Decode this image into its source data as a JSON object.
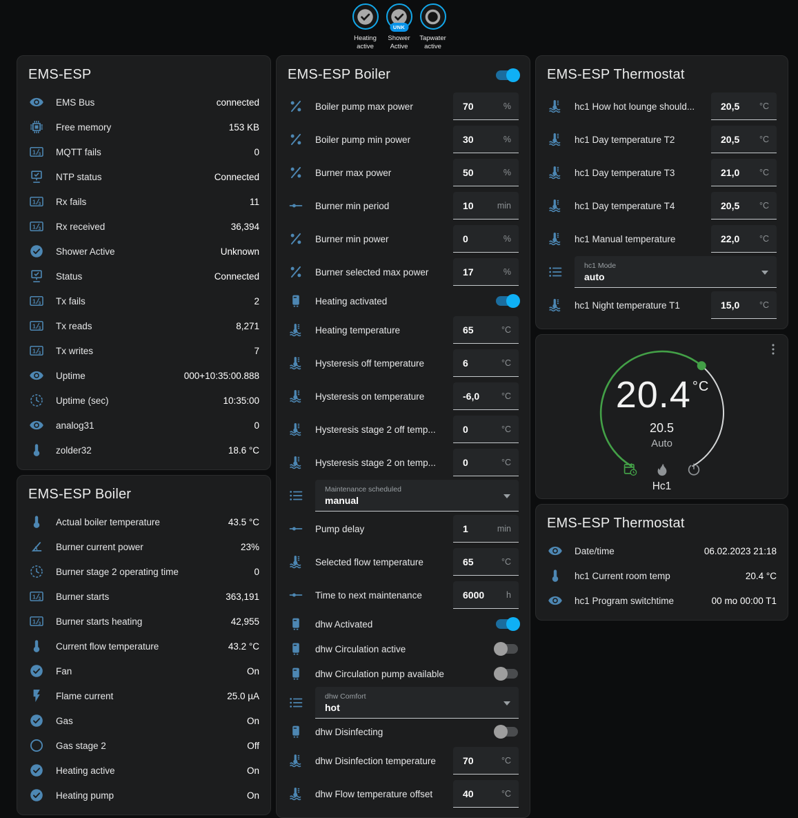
{
  "colors": {
    "icon_blue": "#4d87b3",
    "toggle_on": "#0fb0f5",
    "badge_ring": "#12a7ea",
    "dial_green": "#43a047",
    "card_bg": "#1c1d1e"
  },
  "badges": [
    {
      "label": "Heating active",
      "state": "on",
      "pill": ""
    },
    {
      "label": "Shower Active",
      "state": "on",
      "pill": "UNK"
    },
    {
      "label": "Tapwater active",
      "state": "off",
      "pill": ""
    }
  ],
  "cards": {
    "ems_esp": {
      "title": "EMS-ESP",
      "rows": [
        {
          "type": "text",
          "icon": "eye",
          "label": "EMS Bus",
          "value": "connected"
        },
        {
          "type": "text",
          "icon": "memory",
          "label": "Free memory",
          "value": "153 KB"
        },
        {
          "type": "text",
          "icon": "counter",
          "label": "MQTT fails",
          "value": "0"
        },
        {
          "type": "text",
          "icon": "lan",
          "label": "NTP status",
          "value": "Connected"
        },
        {
          "type": "text",
          "icon": "counter",
          "label": "Rx fails",
          "value": "11"
        },
        {
          "type": "text",
          "icon": "counter",
          "label": "Rx received",
          "value": "36,394"
        },
        {
          "type": "text",
          "icon": "check-circle",
          "label": "Shower Active",
          "value": "Unknown"
        },
        {
          "type": "text",
          "icon": "lan",
          "label": "Status",
          "value": "Connected"
        },
        {
          "type": "text",
          "icon": "counter",
          "label": "Tx fails",
          "value": "2"
        },
        {
          "type": "text",
          "icon": "counter",
          "label": "Tx reads",
          "value": "8,271"
        },
        {
          "type": "text",
          "icon": "counter",
          "label": "Tx writes",
          "value": "7"
        },
        {
          "type": "text",
          "icon": "eye",
          "label": "Uptime",
          "value": "000+10:35:00.888"
        },
        {
          "type": "text",
          "icon": "clock",
          "label": "Uptime (sec)",
          "value": "10:35:00"
        },
        {
          "type": "text",
          "icon": "eye",
          "label": "analog31",
          "value": "0"
        },
        {
          "type": "text",
          "icon": "thermometer",
          "label": "zolder32",
          "value": "18.6 °C"
        }
      ]
    },
    "boiler_sensors": {
      "title": "EMS-ESP Boiler",
      "rows": [
        {
          "type": "text",
          "icon": "thermometer",
          "label": "Actual boiler temperature",
          "value": "43.5 °C"
        },
        {
          "type": "text",
          "icon": "angle",
          "label": "Burner current power",
          "value": "23%"
        },
        {
          "type": "text",
          "icon": "clock",
          "label": "Burner stage 2 operating time",
          "value": "0"
        },
        {
          "type": "text",
          "icon": "counter",
          "label": "Burner starts",
          "value": "363,191"
        },
        {
          "type": "text",
          "icon": "counter",
          "label": "Burner starts heating",
          "value": "42,955"
        },
        {
          "type": "text",
          "icon": "thermometer",
          "label": "Current flow temperature",
          "value": "43.2 °C"
        },
        {
          "type": "text",
          "icon": "check-circle",
          "label": "Fan",
          "value": "On"
        },
        {
          "type": "text",
          "icon": "flash",
          "label": "Flame current",
          "value": "25.0 µA"
        },
        {
          "type": "text",
          "icon": "check-circle",
          "label": "Gas",
          "value": "On"
        },
        {
          "type": "text",
          "icon": "circle-o",
          "label": "Gas stage 2",
          "value": "Off"
        },
        {
          "type": "text",
          "icon": "check-circle",
          "label": "Heating active",
          "value": "On"
        },
        {
          "type": "text",
          "icon": "check-circle",
          "label": "Heating pump",
          "value": "On"
        }
      ]
    },
    "boiler_controls": {
      "title": "EMS-ESP Boiler",
      "power_toggle": "on",
      "rows": [
        {
          "type": "number",
          "icon": "percent",
          "label": "Boiler pump max power",
          "value": "70",
          "unit": "%"
        },
        {
          "type": "number",
          "icon": "percent",
          "label": "Boiler pump min power",
          "value": "30",
          "unit": "%"
        },
        {
          "type": "number",
          "icon": "percent",
          "label": "Burner max power",
          "value": "50",
          "unit": "%"
        },
        {
          "type": "number",
          "icon": "slider",
          "label": "Burner min period",
          "value": "10",
          "unit": "min"
        },
        {
          "type": "number",
          "icon": "percent",
          "label": "Burner min power",
          "value": "0",
          "unit": "%"
        },
        {
          "type": "number",
          "icon": "percent",
          "label": "Burner selected max power",
          "value": "17",
          "unit": "%"
        },
        {
          "type": "toggle",
          "icon": "heater",
          "label": "Heating activated",
          "state": "on"
        },
        {
          "type": "number",
          "icon": "coolant",
          "label": "Heating temperature",
          "value": "65",
          "unit": "°C"
        },
        {
          "type": "number",
          "icon": "coolant",
          "label": "Hysteresis off temperature",
          "value": "6",
          "unit": "°C"
        },
        {
          "type": "number",
          "icon": "coolant",
          "label": "Hysteresis on temperature",
          "value": "-6,0",
          "unit": "°C"
        },
        {
          "type": "number",
          "icon": "coolant",
          "label": "Hysteresis stage 2 off temp...",
          "value": "0",
          "unit": "°C"
        },
        {
          "type": "number",
          "icon": "coolant",
          "label": "Hysteresis stage 2 on temp...",
          "value": "0",
          "unit": "°C"
        },
        {
          "type": "select",
          "icon": "list",
          "label": "Maintenance scheduled",
          "value": "manual"
        },
        {
          "type": "number",
          "icon": "slider",
          "label": "Pump delay",
          "value": "1",
          "unit": "min"
        },
        {
          "type": "number",
          "icon": "coolant",
          "label": "Selected flow temperature",
          "value": "65",
          "unit": "°C"
        },
        {
          "type": "number",
          "icon": "slider",
          "label": "Time to next maintenance",
          "value": "6000",
          "unit": "h"
        },
        {
          "type": "toggle",
          "icon": "heater",
          "label": "dhw Activated",
          "state": "on"
        },
        {
          "type": "toggle",
          "icon": "heater",
          "label": "dhw Circulation active",
          "state": "off"
        },
        {
          "type": "toggle",
          "icon": "heater",
          "label": "dhw Circulation pump available",
          "state": "off"
        },
        {
          "type": "select",
          "icon": "list",
          "label": "dhw Comfort",
          "value": "hot"
        },
        {
          "type": "toggle",
          "icon": "heater",
          "label": "dhw Disinfecting",
          "state": "off"
        },
        {
          "type": "number",
          "icon": "coolant",
          "label": "dhw Disinfection temperature",
          "value": "70",
          "unit": "°C"
        },
        {
          "type": "number",
          "icon": "coolant",
          "label": "dhw Flow temperature offset",
          "value": "40",
          "unit": "°C"
        }
      ]
    },
    "thermostat_controls": {
      "title": "EMS-ESP Thermostat",
      "rows": [
        {
          "type": "number",
          "icon": "coolant",
          "label": "hc1 How hot lounge should...",
          "value": "20,5",
          "unit": "°C"
        },
        {
          "type": "number",
          "icon": "coolant",
          "label": "hc1 Day temperature T2",
          "value": "20,5",
          "unit": "°C"
        },
        {
          "type": "number",
          "icon": "coolant",
          "label": "hc1 Day temperature T3",
          "value": "21,0",
          "unit": "°C"
        },
        {
          "type": "number",
          "icon": "coolant",
          "label": "hc1 Day temperature T4",
          "value": "20,5",
          "unit": "°C"
        },
        {
          "type": "number",
          "icon": "coolant",
          "label": "hc1 Manual temperature",
          "value": "22,0",
          "unit": "°C"
        },
        {
          "type": "select",
          "icon": "list",
          "label": "hc1 Mode",
          "value": "auto"
        },
        {
          "type": "number",
          "icon": "coolant",
          "label": "hc1 Night temperature T1",
          "value": "15,0",
          "unit": "°C"
        }
      ]
    },
    "thermostat_dial": {
      "current": "20.4",
      "unit": "°C",
      "target": "20.5",
      "mode_label": "Auto",
      "name": "Hc1",
      "modes": [
        {
          "icon": "calendar-clock",
          "active": true
        },
        {
          "icon": "fire",
          "active": false
        },
        {
          "icon": "power",
          "active": false
        }
      ]
    },
    "thermostat_info": {
      "title": "EMS-ESP Thermostat",
      "rows": [
        {
          "type": "text",
          "icon": "eye",
          "label": "Date/time",
          "value": "06.02.2023 21:18"
        },
        {
          "type": "text",
          "icon": "thermometer",
          "label": "hc1 Current room temp",
          "value": "20.4 °C"
        },
        {
          "type": "text",
          "icon": "eye",
          "label": "hc1 Program switchtime",
          "value": "00 mo 00:00 T1"
        }
      ]
    }
  }
}
